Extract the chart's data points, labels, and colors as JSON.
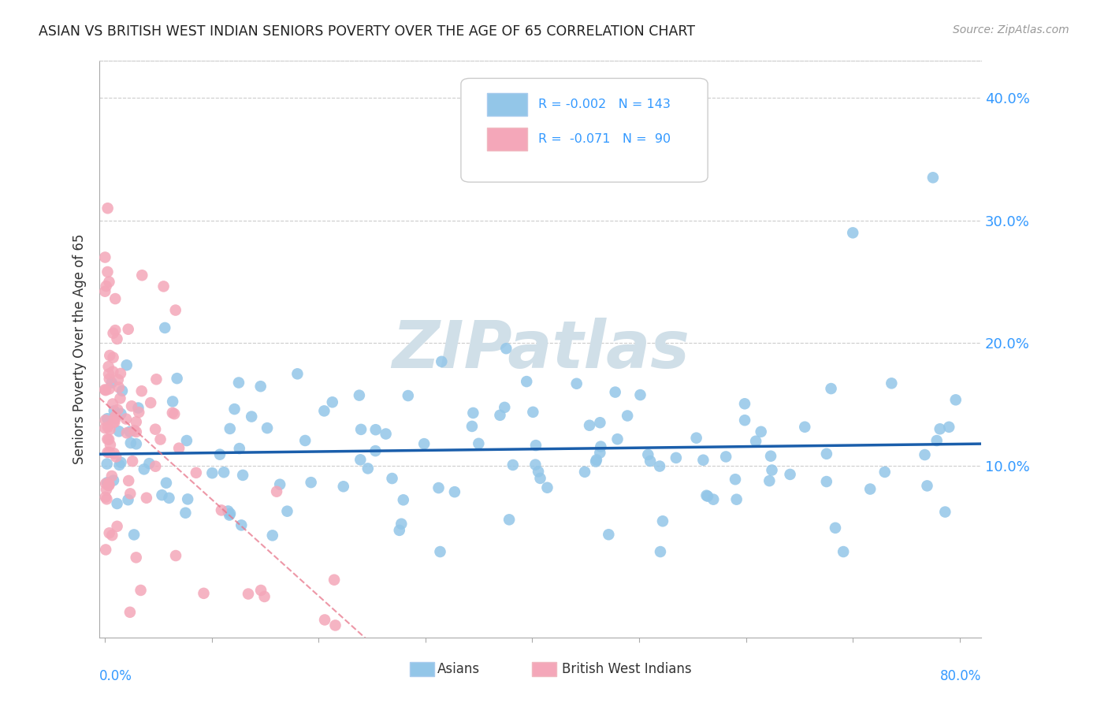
{
  "title": "ASIAN VS BRITISH WEST INDIAN SENIORS POVERTY OVER THE AGE OF 65 CORRELATION CHART",
  "source": "Source: ZipAtlas.com",
  "ylabel": "Seniors Poverty Over the Age of 65",
  "ytick_labels": [
    "10.0%",
    "20.0%",
    "30.0%",
    "40.0%"
  ],
  "ytick_values": [
    0.1,
    0.2,
    0.3,
    0.4
  ],
  "xlim": [
    -0.005,
    0.82
  ],
  "ylim": [
    -0.04,
    0.43
  ],
  "asian_color": "#93C6E8",
  "bwi_color": "#F4A7B9",
  "asian_line_color": "#1A5EAB",
  "bwi_line_color": "#E8758A",
  "watermark_color": "#D0DFE8",
  "asian_R": -0.002,
  "asian_N": 143,
  "bwi_R": -0.071,
  "bwi_N": 90,
  "background_color": "#ffffff",
  "grid_color": "#cccccc",
  "title_color": "#222222",
  "source_color": "#999999",
  "axis_label_color": "#3399FF"
}
